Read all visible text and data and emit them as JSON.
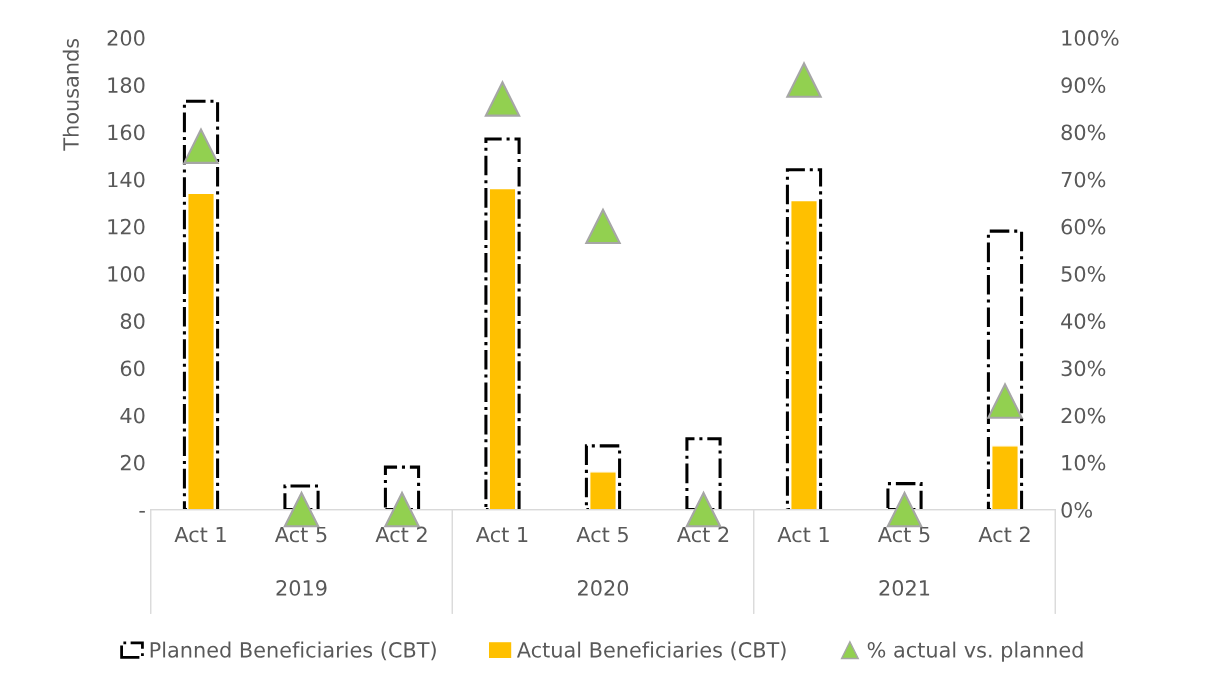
{
  "chart_data": {
    "type": "bar",
    "ylabel": "Thousands",
    "categories": [
      "Act 1",
      "Act 5",
      "Act 2",
      "Act 1",
      "Act 5",
      "Act 2",
      "Act 1",
      "Act 5",
      "Act 2"
    ],
    "annotations": [
      "2019",
      "2020",
      "2021"
    ],
    "series": [
      {
        "name": "Planned Beneficiaries (CBT)",
        "color": "#000000",
        "line_style": "dashed",
        "values": [
          173,
          10,
          18,
          157,
          27,
          30,
          144,
          11,
          118
        ]
      },
      {
        "name": "Actual Beneficiaries (CBT)",
        "color": "#ffc000",
        "values": [
          134,
          null,
          null,
          136,
          16,
          null,
          131,
          null,
          27
        ]
      },
      {
        "name": "% actual vs. planned",
        "type": "scatter",
        "axis": "y2",
        "marker": "triangle",
        "color": "#92d050",
        "values": [
          77,
          0,
          0,
          87,
          60,
          0,
          91,
          0,
          23
        ]
      }
    ],
    "ylim": [
      0,
      200
    ],
    "yticks": [
      {
        "value": 0,
        "label": "-"
      },
      20,
      40,
      60,
      80,
      100,
      120,
      140,
      160,
      180,
      200
    ],
    "y2lim": [
      0,
      100
    ],
    "y2ticks": [
      {
        "value": 0,
        "label": "0%"
      },
      {
        "value": 10,
        "label": "10%"
      },
      {
        "value": 20,
        "label": "20%"
      },
      {
        "value": 30,
        "label": "30%"
      },
      {
        "value": 40,
        "label": "40%"
      },
      {
        "value": 50,
        "label": "50%"
      },
      {
        "value": 60,
        "label": "60%"
      },
      {
        "value": 70,
        "label": "70%"
      },
      {
        "value": 80,
        "label": "80%"
      },
      {
        "value": 90,
        "label": "90%"
      },
      {
        "value": 100,
        "label": "100%"
      }
    ],
    "grid": false,
    "legend": "bottom"
  }
}
